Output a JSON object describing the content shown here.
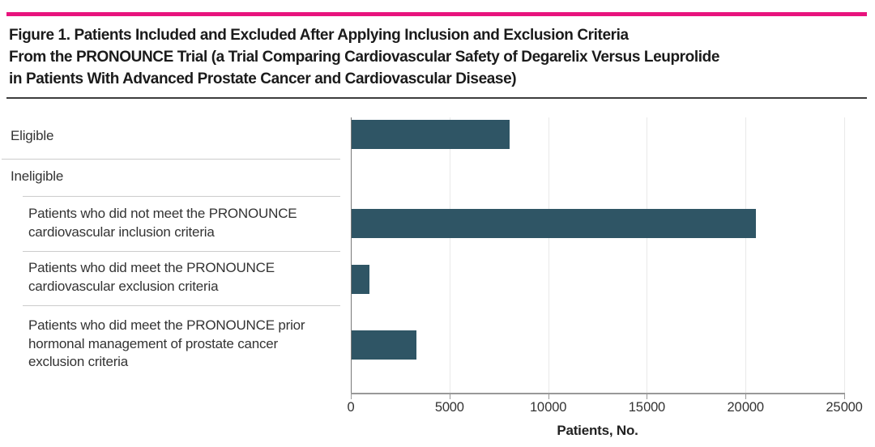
{
  "figure": {
    "accent_color": "#E8137D",
    "title_lines": [
      "Figure 1. Patients Included and Excluded After Applying Inclusion and Exclusion Criteria",
      "From the PRONOUNCE Trial (a Trial Comparing Cardiovascular Safety of Degarelix Versus Leuprolide",
      "in Patients With Advanced Prostate Cancer and Cardiovascular Disease)"
    ]
  },
  "chart_data": {
    "type": "bar",
    "orientation": "horizontal",
    "title": "Patients Included and Excluded After Applying Inclusion and Exclusion Criteria From the PRONOUNCE Trial",
    "xlabel": "Patients, No.",
    "ylabel": "",
    "xlim": [
      0,
      25000
    ],
    "xticks": [
      0,
      5000,
      10000,
      15000,
      20000,
      25000
    ],
    "xtick_labels": [
      "0",
      "5000",
      "10 000",
      "15 000",
      "20 000",
      "25 000"
    ],
    "grid": "vertical",
    "legend": "none",
    "bar_color": "#2F5565",
    "rows": [
      {
        "label": "Eligible",
        "indent": 0,
        "value": 8000
      },
      {
        "label": "Ineligible",
        "indent": 0,
        "value": null
      },
      {
        "label": "Patients who did not meet the PRONOUNCE cardiovascular inclusion criteria",
        "indent": 1,
        "value": 20500
      },
      {
        "label": "Patients who did meet the PRONOUNCE cardiovascular exclusion criteria",
        "indent": 1,
        "value": 900
      },
      {
        "label": "Patients who did meet the PRONOUNCE prior hormonal management of prostate cancer exclusion criteria",
        "indent": 1,
        "value": 3300
      }
    ]
  }
}
